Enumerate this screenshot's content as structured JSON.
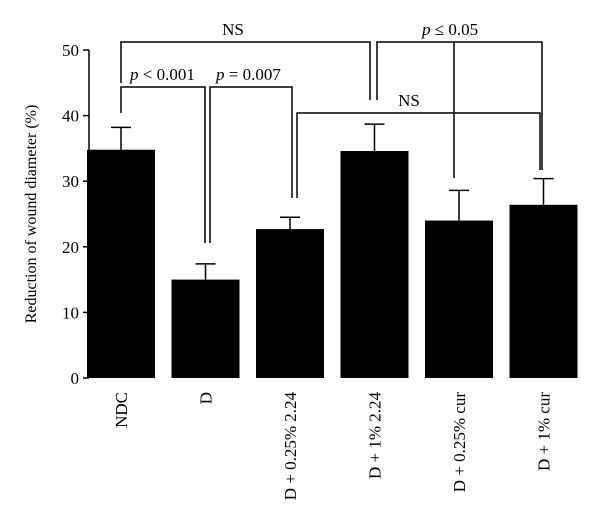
{
  "chart_data": {
    "type": "bar",
    "title": "",
    "xlabel": "",
    "ylabel": "Reduction of wound diameter (%)",
    "ylim": [
      0,
      50
    ],
    "yticks": [
      0,
      10,
      20,
      30,
      40,
      50
    ],
    "categories": [
      "NDC",
      "D",
      "D + 0.25% 2.24",
      "D + 1% 2.24",
      "D + 0.25% cur",
      "D + 1% cur"
    ],
    "values": [
      34.8,
      15.0,
      22.7,
      34.6,
      24.0,
      26.4
    ],
    "errors": [
      3.4,
      2.4,
      1.8,
      4.1,
      4.6,
      4.0
    ],
    "bar_color": "#000000",
    "annotations": [
      {
        "id": "ndc-vs-d",
        "p_prefix": "p",
        "text": " < 0.001"
      },
      {
        "id": "d-vs-025-224",
        "p_prefix": "p",
        "text": " = 0.007"
      },
      {
        "id": "ndc-vs-1-224",
        "p_prefix": "",
        "text": "NS"
      },
      {
        "id": "1-224-vs-cur",
        "p_prefix": "p",
        "text": " ≤ 0.05"
      },
      {
        "id": "025-224-vs-cur",
        "p_prefix": "",
        "text": "NS"
      }
    ]
  }
}
